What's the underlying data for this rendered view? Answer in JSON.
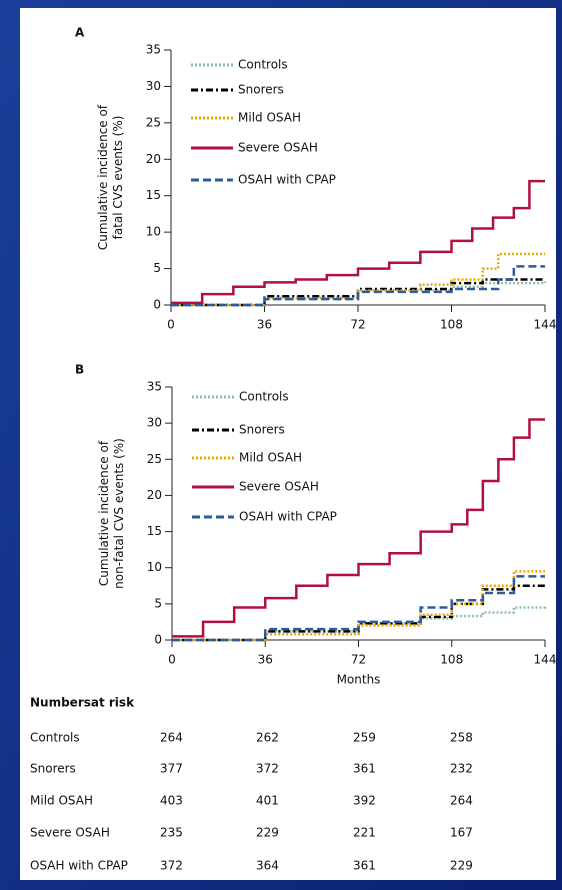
{
  "chart_data": [
    {
      "type": "line",
      "panel": "A",
      "ylabel": [
        "Cumulative incidence of",
        "fatal CVS events (%)"
      ],
      "xlim": [
        0,
        144
      ],
      "xticks": [
        0,
        36,
        72,
        108,
        144
      ],
      "ylim": [
        0,
        35
      ],
      "yticks": [
        0,
        5,
        10,
        15,
        20,
        25,
        30,
        35
      ],
      "legend": "upper left",
      "step": true,
      "series": [
        {
          "name": "Controls",
          "color": "#8fbf9f",
          "linestyle": "dotted",
          "x": [
            0,
            36,
            72,
            108,
            120,
            144
          ],
          "values": [
            0,
            1,
            2,
            2.5,
            3,
            3.2
          ]
        },
        {
          "name": "Snorers",
          "color": "#000000",
          "linestyle": "dashdot",
          "x": [
            0,
            36,
            72,
            108,
            120,
            144
          ],
          "values": [
            0,
            1.2,
            2.2,
            3,
            3.5,
            3.5
          ]
        },
        {
          "name": "Mild OSAH",
          "color": "#e8a800",
          "linestyle": "dotted",
          "x": [
            0,
            36,
            72,
            96,
            108,
            120,
            126,
            144
          ],
          "values": [
            0,
            0.9,
            2,
            2.8,
            3.5,
            5,
            7,
            7
          ]
        },
        {
          "name": "Severe OSAH",
          "color": "#b0103c",
          "linestyle": "solid",
          "x": [
            0,
            12,
            24,
            36,
            48,
            60,
            72,
            84,
            96,
            108,
            116,
            124,
            132,
            138,
            144
          ],
          "values": [
            0.3,
            1.5,
            2.5,
            3.1,
            3.5,
            4.1,
            5,
            5.8,
            7.3,
            8.8,
            10.5,
            12,
            13.3,
            17,
            17
          ]
        },
        {
          "name": "OSAH with CPAP",
          "color": "#2e5a9c",
          "linestyle": "dashed",
          "x": [
            0,
            36,
            72,
            108,
            126,
            132,
            144
          ],
          "values": [
            0,
            0.8,
            1.8,
            2.2,
            3.5,
            5.3,
            5.3
          ]
        }
      ]
    },
    {
      "type": "line",
      "panel": "B",
      "ylabel": [
        "Cumulative incidence of",
        "non-fatal CVS events (%)"
      ],
      "xlabel": "Months",
      "xlim": [
        0,
        144
      ],
      "xticks": [
        0,
        36,
        72,
        108,
        144
      ],
      "ylim": [
        0,
        35
      ],
      "yticks": [
        0,
        5,
        10,
        15,
        20,
        25,
        30,
        35
      ],
      "legend": "upper left",
      "step": true,
      "series": [
        {
          "name": "Controls",
          "color": "#8fbf9f",
          "linestyle": "dotted",
          "x": [
            0,
            36,
            72,
            96,
            108,
            120,
            132,
            144
          ],
          "values": [
            0,
            1.2,
            2.3,
            3,
            3.3,
            3.8,
            4.5,
            4.8
          ]
        },
        {
          "name": "Snorers",
          "color": "#000000",
          "linestyle": "dashdot",
          "x": [
            0,
            36,
            72,
            96,
            108,
            120,
            132,
            144
          ],
          "values": [
            0,
            1.2,
            2.3,
            3.2,
            5,
            7,
            7.5,
            7.5
          ]
        },
        {
          "name": "Mild OSAH",
          "color": "#e8a800",
          "linestyle": "dotted",
          "x": [
            0,
            36,
            72,
            96,
            108,
            120,
            132,
            144
          ],
          "values": [
            0,
            0.8,
            2,
            3.5,
            5,
            7.5,
            9.5,
            9.5
          ]
        },
        {
          "name": "Severe OSAH",
          "color": "#b0103c",
          "linestyle": "solid",
          "x": [
            0,
            12,
            24,
            36,
            48,
            60,
            72,
            84,
            96,
            108,
            114,
            120,
            126,
            132,
            138,
            144
          ],
          "values": [
            0.5,
            2.5,
            4.5,
            5.8,
            7.5,
            9,
            10.5,
            12,
            15,
            16,
            18,
            22,
            25,
            28,
            30.5,
            30.5
          ]
        },
        {
          "name": "OSAH with CPAP",
          "color": "#2e5a9c",
          "linestyle": "dashed",
          "x": [
            0,
            36,
            72,
            96,
            108,
            120,
            132,
            144
          ],
          "values": [
            0,
            1.5,
            2.5,
            4.5,
            5.5,
            6.5,
            8.8,
            8.8
          ]
        }
      ]
    }
  ],
  "risk_table": {
    "title": "Numbersat risk",
    "rows": [
      {
        "label": "Controls",
        "values": [
          264,
          262,
          259,
          258
        ]
      },
      {
        "label": "Snorers",
        "values": [
          377,
          372,
          361,
          232
        ]
      },
      {
        "label": "Mild OSAH",
        "values": [
          403,
          401,
          392,
          264
        ]
      },
      {
        "label": "Severe OSAH",
        "values": [
          235,
          229,
          221,
          167
        ]
      },
      {
        "label": "OSAH with CPAP",
        "values": [
          372,
          364,
          361,
          229
        ]
      }
    ]
  }
}
